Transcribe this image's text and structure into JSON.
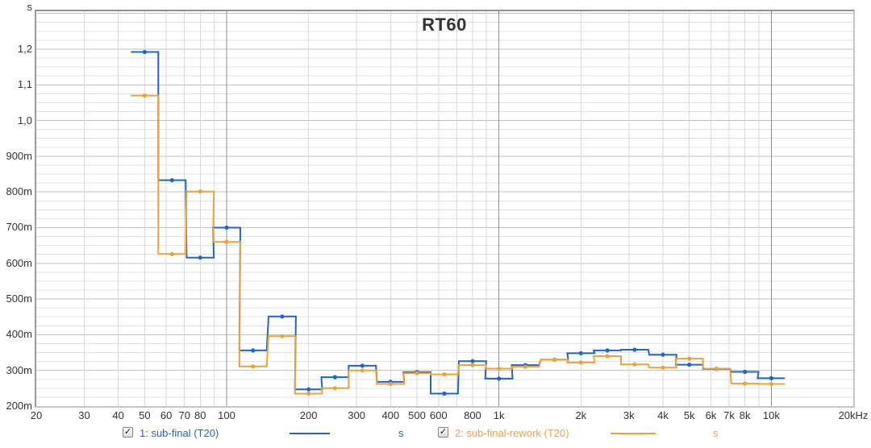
{
  "window": {
    "title": "RT60"
  },
  "y_axis": {
    "unit": "s"
  },
  "icons": {
    "checkbox_check": "✓"
  },
  "colors": {
    "trace1": "#2065c8",
    "trace2": "#eca23b",
    "grid_minor": "#e2e2e2",
    "grid_major_h": "#c2c2c2",
    "grid_minor_v": "#dadada",
    "grid_decade_v": "#909090",
    "text": "#333333"
  },
  "legend": [
    {
      "label": "1: sub-final (T20)",
      "unit": "s",
      "color": "#2065c8",
      "checked": true
    },
    {
      "label": "2: sub-final-rework (T20)",
      "unit": "s",
      "color": "#eca23b",
      "checked": true
    }
  ],
  "chart_data": {
    "type": "line",
    "style": "step-bands",
    "bandwidth": "1/3 octave",
    "title": "RT60",
    "xlabel": "Hz",
    "ylabel": "s",
    "x_scale": "log",
    "xlim": [
      20,
      20000
    ],
    "ylim": [
      0.2,
      1.306
    ],
    "y_major_step": 0.1,
    "y_minor_step": 0.025,
    "grid": true,
    "legend_position": "bottom",
    "x_ticks": [
      {
        "f": 20,
        "label": "20"
      },
      {
        "f": 30,
        "label": "30"
      },
      {
        "f": 40,
        "label": "40"
      },
      {
        "f": 50,
        "label": "50"
      },
      {
        "f": 60,
        "label": "60"
      },
      {
        "f": 70,
        "label": "70"
      },
      {
        "f": 80,
        "label": "80"
      },
      {
        "f": 100,
        "label": "100"
      },
      {
        "f": 200,
        "label": "200"
      },
      {
        "f": 300,
        "label": "300"
      },
      {
        "f": 400,
        "label": "400"
      },
      {
        "f": 500,
        "label": "500"
      },
      {
        "f": 600,
        "label": "600"
      },
      {
        "f": 800,
        "label": "800"
      },
      {
        "f": 1000,
        "label": "1k"
      },
      {
        "f": 2000,
        "label": "2k"
      },
      {
        "f": 3000,
        "label": "3k"
      },
      {
        "f": 4000,
        "label": "4k"
      },
      {
        "f": 5000,
        "label": "5k"
      },
      {
        "f": 6000,
        "label": "6k"
      },
      {
        "f": 7000,
        "label": "7k"
      },
      {
        "f": 8000,
        "label": "8k"
      },
      {
        "f": 10000,
        "label": "10k"
      },
      {
        "f": 20000,
        "label": "20kHz"
      }
    ],
    "y_ticks": [
      {
        "v": 1.2,
        "label": "1,2"
      },
      {
        "v": 1.1,
        "label": "1,1"
      },
      {
        "v": 1.0,
        "label": "1,0"
      },
      {
        "v": 0.9,
        "label": "900m"
      },
      {
        "v": 0.8,
        "label": "800m"
      },
      {
        "v": 0.7,
        "label": "700m"
      },
      {
        "v": 0.6,
        "label": "600m"
      },
      {
        "v": 0.5,
        "label": "500m"
      },
      {
        "v": 0.4,
        "label": "400m"
      },
      {
        "v": 0.3,
        "label": "300m"
      },
      {
        "v": 0.2,
        "label": "200m"
      }
    ],
    "frequencies_hz": [
      50,
      63,
      80,
      100,
      125,
      160,
      200,
      250,
      315,
      400,
      500,
      630,
      800,
      1000,
      1250,
      1600,
      2000,
      2500,
      3150,
      4000,
      5000,
      6300,
      8000,
      10000
    ],
    "series": [
      {
        "name": "1: sub-final (T20)",
        "unit": "s",
        "color": "#2065c8",
        "values_s": [
          1.192,
          0.833,
          0.616,
          0.7,
          0.356,
          0.451,
          0.247,
          0.281,
          0.313,
          0.268,
          0.295,
          0.235,
          0.326,
          0.277,
          0.315,
          0.33,
          0.348,
          0.356,
          0.358,
          0.344,
          0.316,
          0.304,
          0.296,
          0.278
        ]
      },
      {
        "name": "2: sub-final-rework (T20)",
        "unit": "s",
        "color": "#eca23b",
        "values_s": [
          1.07,
          0.626,
          0.801,
          0.66,
          0.311,
          0.396,
          0.235,
          0.25,
          0.3,
          0.262,
          0.292,
          0.289,
          0.315,
          0.305,
          0.31,
          0.33,
          0.322,
          0.34,
          0.317,
          0.308,
          0.333,
          0.305,
          0.263,
          0.262
        ]
      }
    ]
  }
}
